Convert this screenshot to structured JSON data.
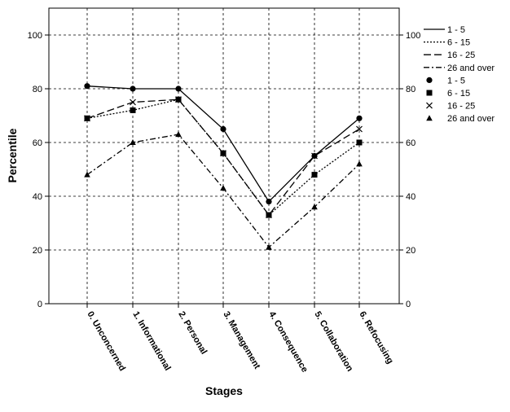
{
  "chart_data": {
    "type": "line",
    "xlabel": "Stages",
    "ylabel": "Percentile",
    "ylim": [
      0,
      110
    ],
    "yticks": [
      0,
      20,
      40,
      60,
      80,
      100
    ],
    "grid": true,
    "legend_position": "right",
    "categories": [
      "0. Unconcerned",
      "1. Informational",
      "2. Personal",
      "3. Management",
      "4. Consequence",
      "5. Collaboration",
      "6. Refocusing"
    ],
    "series": [
      {
        "name": "1 - 5",
        "values": [
          81,
          80,
          80,
          65,
          38,
          55,
          69
        ],
        "line_style": "solid",
        "marker": "circle",
        "color": "#000000"
      },
      {
        "name": "6 - 15",
        "values": [
          69,
          72,
          76,
          56,
          33,
          48,
          60
        ],
        "line_style": "dotted",
        "marker": "square",
        "color": "#000000"
      },
      {
        "name": "16 - 25",
        "values": [
          69,
          75,
          76,
          56,
          33,
          55,
          65
        ],
        "line_style": "dashed",
        "marker": "x",
        "color": "#000000"
      },
      {
        "name": "26 and over",
        "values": [
          48,
          60,
          63,
          43,
          21,
          36,
          52
        ],
        "line_style": "dashdot",
        "marker": "triangle",
        "color": "#000000"
      }
    ]
  }
}
